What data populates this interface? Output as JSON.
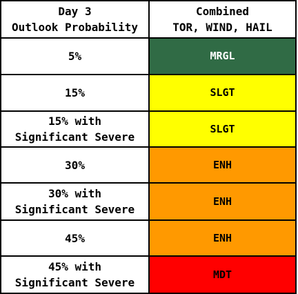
{
  "header": {
    "left_line1": "Day 3",
    "left_line2": "Outlook Probability",
    "right_line1": "Combined",
    "right_line2": "TOR, WIND, HAIL"
  },
  "rows": [
    {
      "prob_line1": "5%",
      "prob_line2": "",
      "category": "MRGL",
      "bg": "#306B45",
      "fg": "#FFFFFF"
    },
    {
      "prob_line1": "15%",
      "prob_line2": "",
      "category": "SLGT",
      "bg": "#FFFF00",
      "fg": "#000000"
    },
    {
      "prob_line1": "15% with",
      "prob_line2": "Significant Severe",
      "category": "SLGT",
      "bg": "#FFFF00",
      "fg": "#000000"
    },
    {
      "prob_line1": "30%",
      "prob_line2": "",
      "category": "ENH",
      "bg": "#FF9900",
      "fg": "#000000"
    },
    {
      "prob_line1": "30% with",
      "prob_line2": "Significant Severe",
      "category": "ENH",
      "bg": "#FF9900",
      "fg": "#000000"
    },
    {
      "prob_line1": "45%",
      "prob_line2": "",
      "category": "ENH",
      "bg": "#FF9900",
      "fg": "#000000"
    },
    {
      "prob_line1": "45% with",
      "prob_line2": "Significant Severe",
      "category": "MDT",
      "bg": "#FF0000",
      "fg": "#000000"
    }
  ]
}
